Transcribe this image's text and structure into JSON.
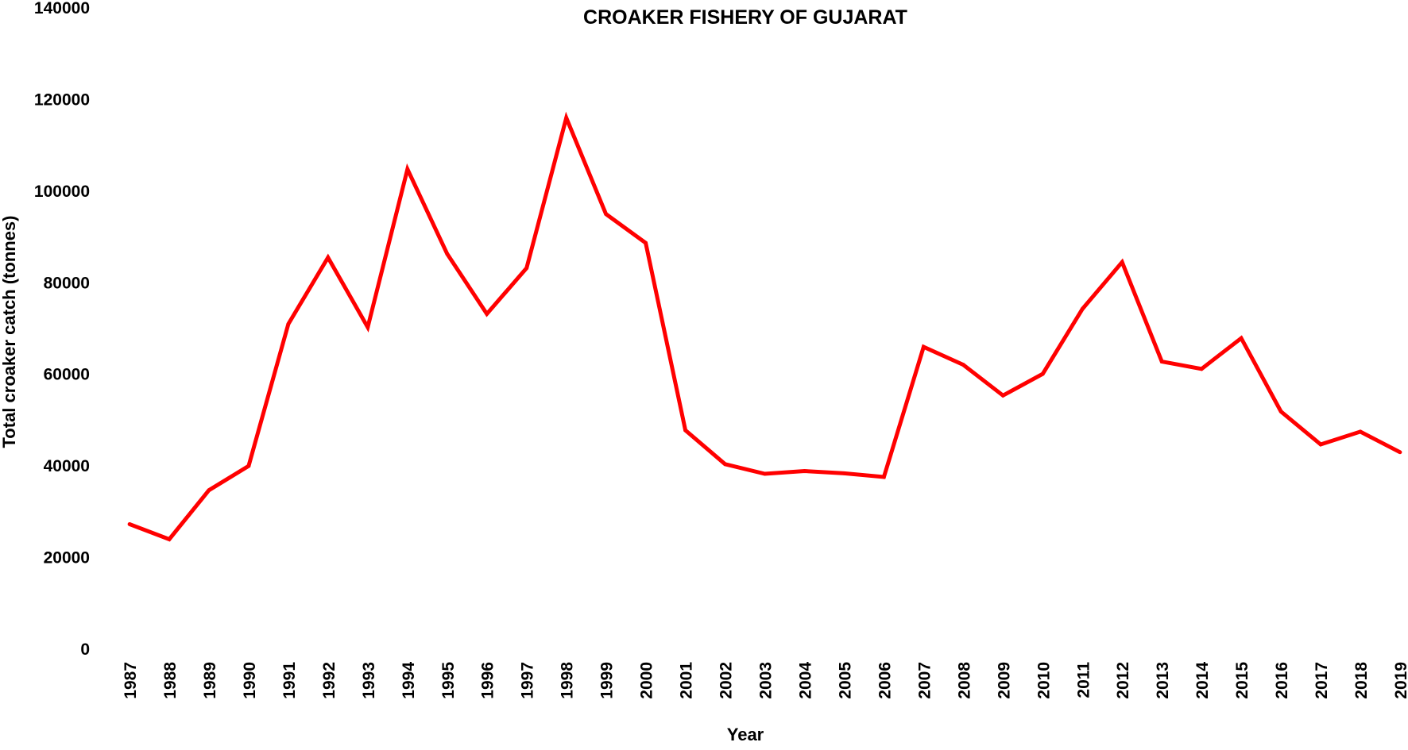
{
  "chart_data": {
    "type": "line",
    "title": "CROAKER FISHERY OF GUJARAT",
    "xlabel": "Year",
    "ylabel": "Total croaker catch (tonnes)",
    "ylim": [
      0,
      140000
    ],
    "yticks": [
      0,
      20000,
      40000,
      60000,
      80000,
      100000,
      120000,
      140000
    ],
    "grid": false,
    "legend": "none",
    "categories": [
      "1987",
      "1988",
      "1989",
      "1990",
      "1991",
      "1992",
      "1993",
      "1994",
      "1995",
      "1996",
      "1997",
      "1998",
      "1999",
      "2000",
      "2001",
      "2002",
      "2003",
      "2004",
      "2005",
      "2006",
      "2007",
      "2008",
      "2009",
      "2010",
      "2011",
      "2012",
      "2013",
      "2014",
      "2015",
      "2016",
      "2017",
      "2018",
      "2019"
    ],
    "series": [
      {
        "color": "#ff0000",
        "values": [
          27300,
          24000,
          34700,
          40000,
          71000,
          85500,
          70300,
          104800,
          86300,
          73200,
          83200,
          116000,
          95000,
          88700,
          47800,
          40400,
          38300,
          38900,
          38400,
          37600,
          66000,
          62100,
          55400,
          60100,
          74300,
          84500,
          62800,
          61200,
          67900,
          51900,
          44700,
          47500,
          43000
        ]
      }
    ]
  }
}
